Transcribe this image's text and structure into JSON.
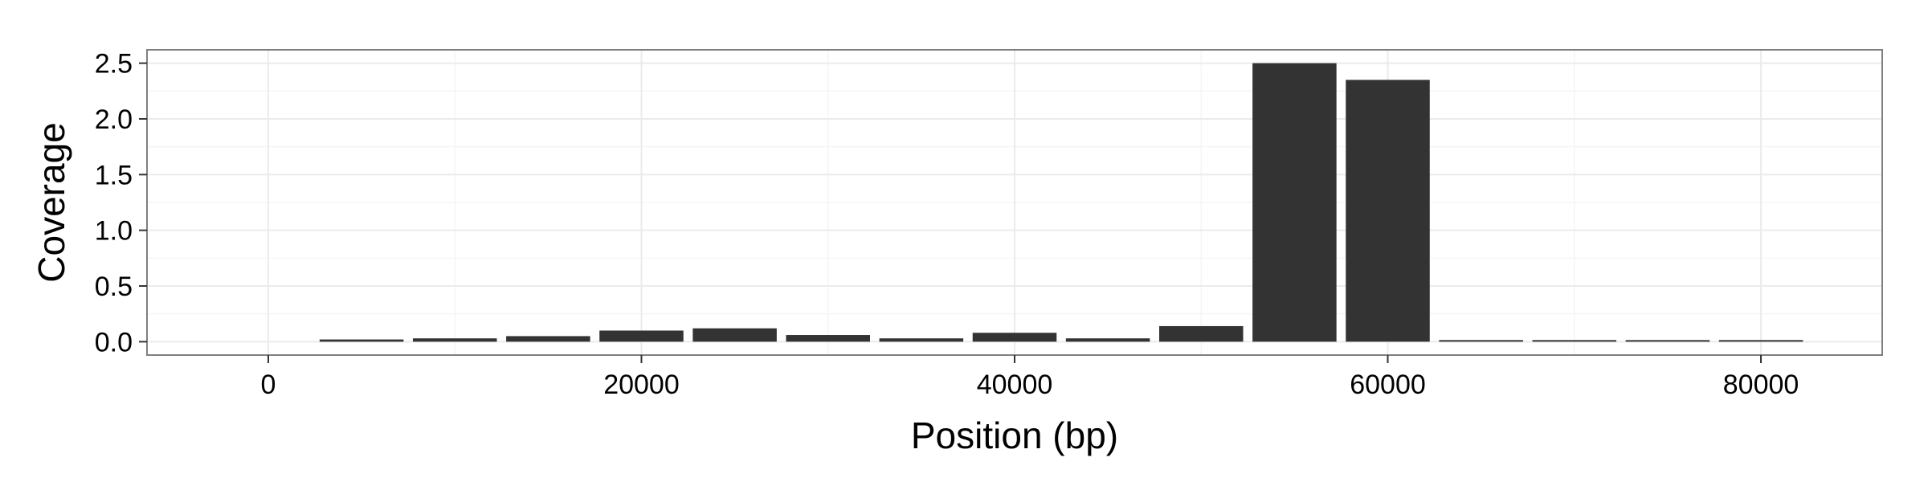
{
  "chart_data": {
    "type": "bar",
    "title": "",
    "xlabel": "Position (bp)",
    "ylabel": "Coverage",
    "xlim": [
      -6500,
      86500
    ],
    "ylim": [
      -0.12,
      2.62
    ],
    "x_ticks": [
      0,
      20000,
      40000,
      60000,
      80000
    ],
    "x_tick_labels": [
      "0",
      "20000",
      "40000",
      "60000",
      "80000"
    ],
    "y_ticks": [
      0.0,
      0.5,
      1.0,
      1.5,
      2.0,
      2.5
    ],
    "y_tick_labels": [
      "0.0",
      "0.5",
      "1.0",
      "1.5",
      "2.0",
      "2.5"
    ],
    "bin_width": 5000,
    "x": [
      0,
      5000,
      10000,
      15000,
      20000,
      25000,
      30000,
      35000,
      40000,
      45000,
      50000,
      55000,
      60000,
      65000,
      70000,
      75000,
      80000
    ],
    "values": [
      0.0,
      0.02,
      0.03,
      0.05,
      0.1,
      0.12,
      0.06,
      0.03,
      0.08,
      0.03,
      0.14,
      2.5,
      2.35,
      0.005,
      0.005,
      0.005,
      0.005
    ],
    "bar_color": "#333333",
    "grid": true
  }
}
